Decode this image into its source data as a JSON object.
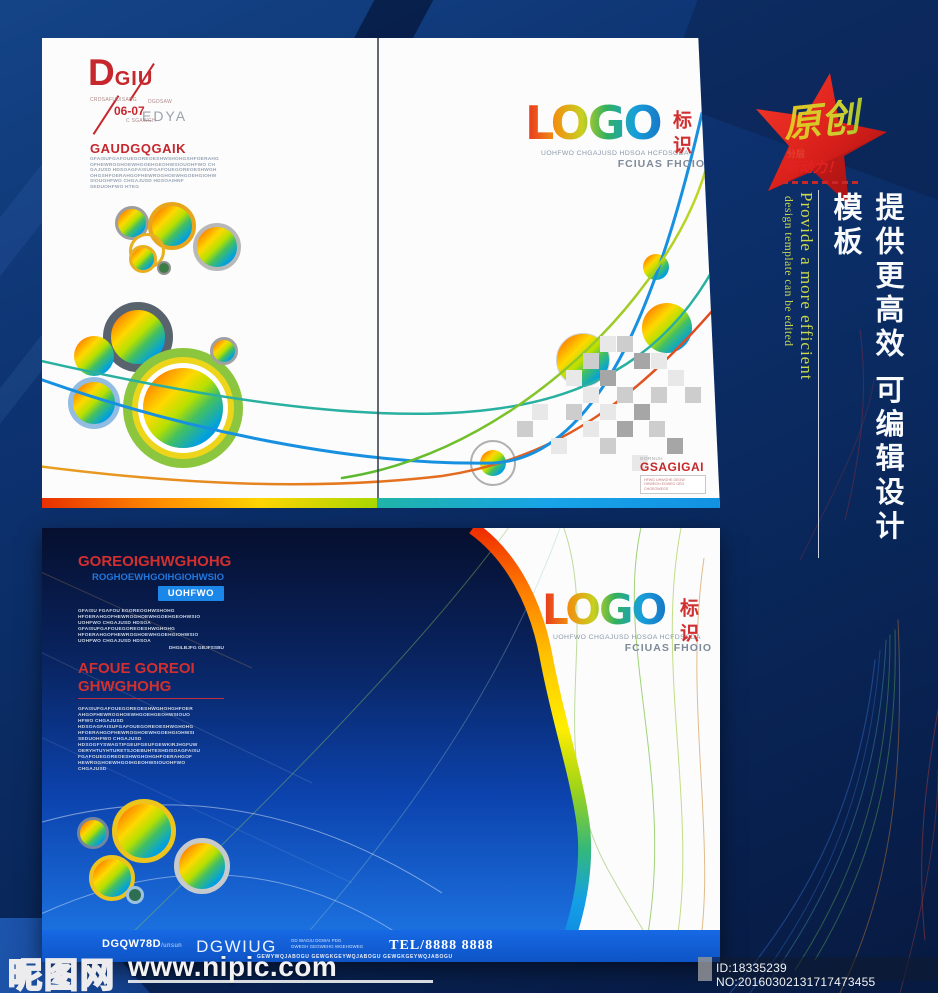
{
  "colors": {
    "background_navy": "#0b2a5e",
    "accent_red": "#c5272d",
    "bright_blue": "#1668e2",
    "logo_rainbow": [
      "#e83020",
      "#f09010",
      "#c8d020",
      "#30b060",
      "#18a0d8",
      "#1878c8"
    ],
    "ribbon_rainbow": [
      "#ee2c00",
      "#ff7a00",
      "#ffee00",
      "#9fd418",
      "#34b87a",
      "#0f7fe0"
    ]
  },
  "side_banner": {
    "star_title": "原创",
    "star_sub1": "分层",
    "star_sub2": "新动力！",
    "vertical_cn": "提供更高效 可编辑设计模板",
    "vertical_en_line1": "Provide a more efficient",
    "vertical_en_line2": "design template can be edited"
  },
  "logo": {
    "text": "LOGO",
    "cn": "标识",
    "tag1": "UOHFWO CHGAJUSD HDSOA HCFDSODA",
    "tag2": "FCIUAS FHOIO"
  },
  "top_cover": {
    "brand_initial": "D",
    "brand_rest": "GIU",
    "brand_small1": "CRDSAFUDISABG",
    "brand_small2": "DGDSAW",
    "brand_date": "06-07",
    "brand_edya": "EDYA",
    "brand_small3": "C SGAWGH",
    "heading": "GAUDGQGAIK",
    "body_lines": [
      "GFAISUFGAFOUEGOREOESHWSHOHGSHFOERAHG",
      "OFHEWROGHOEWHGOEHGEOHWSIOUOHFWO CH",
      "GAJUSD HDSOAGFAISUFGAFOUEGOREOESHWGH",
      "OHGSHFOERAHGOFHEWROGHOEWHGOEHGIOHW",
      "SIOUOHFWO CHGAJUSD HDSOAIHNF",
      "SEDUOHFWO HTEG"
    ],
    "stamp_small": "GORNUH",
    "stamp_title": "GSAGIGAI",
    "stamp_lines": [
      "HFWG UHWGHE GEGW",
      "OHWEGH EGWEG GEG",
      "CHGEGWEGS"
    ]
  },
  "bottom_cover": {
    "heading1": "GOREOIGHWGHOHG",
    "subheading": "ROGHOEWHGOIHGIOHWSIO",
    "button_label": "UOHFWO",
    "body1_lines": [
      "GFAISU FGAFOU EGOREOGHWSHOHG",
      "HFOERAHGOFHEWROGHOEWHGOEHGEOHWSIO",
      "UOHFWO CHGAJUSD HDSOA",
      "GFAISUFGAFOUEGOREOESHWGHOHG",
      "HFOERAHGOFHEWROGHOEWHGOEHGIOHWSIO",
      "UOHFWO CHGAJUSD HDSOA"
    ],
    "body1_right": "DHGILBJFG GBJFSSBU",
    "heading2_line1": "AFOUE GOREOI",
    "heading2_line2": "GHWGHOHG",
    "body2_lines": [
      "GFAISUFGAFOUEGOREOESHWGHOHGHFOER",
      "AHGOFHEWROGHOEWHGOEHGEOHWSIOUO",
      "HFWO CHGAJUSD",
      "HDSOAGFAISUFGAFOUEGOREOESHWGHOHG",
      "HFOERAHGOFHEWROGHOEWHGOEHGIOHWSI",
      "SEDUOHFWO CHGAJUSD",
      "HDSOGFYSWAGTIFGEUFGEUFGEWKIRJHGFUW",
      "OERYHTUYHTURETSJOEBUHTESHDISOAGFAISU",
      "FGAFOUEGOREOESHWGHOHGHFOERAHGOF",
      "HEWROGHOEWHGOIHGEOHWSIOUOHFWO",
      "CHGAJUSD"
    ],
    "footer": {
      "brand": "DGQW78D",
      "brand_small": "/unsun",
      "name": "DGWIUG",
      "small1": "GD WAGIU DGWAI PDG",
      "small2": "GWEGH GEGWEHG WGEHGWEG",
      "tel": "TEL/8888 8888",
      "bottom_row": "GEWYWQJABOGU    GEWGKGEYWQJABOGU    GEWGKGEYWQJABOGU"
    }
  },
  "watermark": {
    "site_cn": "昵图网",
    "site_url": "www.nipic.com"
  },
  "id_bar": {
    "text": "ID:18335239 NO:20160302131717473455"
  }
}
